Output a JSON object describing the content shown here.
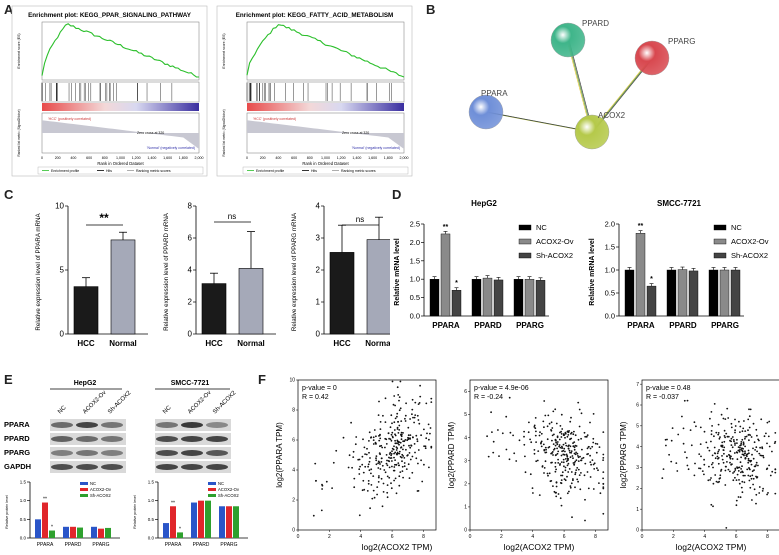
{
  "panel_letters": {
    "A": "A",
    "B": "B",
    "C": "C",
    "D": "D",
    "E": "E",
    "F": "F"
  },
  "panel_a": {
    "plots": [
      {
        "title": "Enrichment plot: KEGG_PPAR_SIGNALING_PATHWAY",
        "ylabel_top": "Enrichment score (ES)",
        "ylabel_bottom": "Ranked list metric (Signal2Noise)",
        "xlabel": "Rank in Ordered Dataset",
        "zero_cross": "Zero cross at 320",
        "pos_label": "'HCC' (positively correlated)",
        "neg_label": "'Normal' (negatively correlated)",
        "legend": [
          "Enrichment profile",
          "Hits",
          "Ranking metric scores"
        ]
      },
      {
        "title": "Enrichment plot: KEGG_FATTY_ACID_METABOLISM",
        "ylabel_top": "Enrichment score (ES)",
        "ylabel_bottom": "Ranked list metric (Signal2Noise)",
        "xlabel": "Rank in Ordered Dataset",
        "zero_cross": "Zero cross at 320",
        "pos_label": "'HCC' (positively correlated)",
        "neg_label": "'Normal' (negatively correlated)",
        "legend": [
          "Enrichment profile",
          "Hits",
          "Ranking metric scores"
        ]
      }
    ],
    "x_ticks": [
      "0",
      "200",
      "400",
      "600",
      "800",
      "1,000",
      "1,200",
      "1,400",
      "1,600",
      "1,800",
      "2,000"
    ]
  },
  "panel_b": {
    "nodes": [
      {
        "label": "PPARD",
        "color": "#3fb58a"
      },
      {
        "label": "PPARG",
        "color": "#d8484f"
      },
      {
        "label": "PPARA",
        "color": "#6f8fd8"
      },
      {
        "label": "ACOX2",
        "color": "#b5c94a"
      }
    ]
  },
  "chart_data": [
    {
      "type": "bar",
      "id": "C1",
      "categories": [
        "HCC",
        "Normal"
      ],
      "values": [
        3.7,
        7.35
      ],
      "errors": [
        0.7,
        0.6
      ],
      "colors": [
        "#1a1a1a",
        "#a5a9b8"
      ],
      "ylabel": "Relative expression level of PPARA mRNA",
      "ylim": [
        0,
        10
      ],
      "yticks": [
        0,
        5,
        10
      ],
      "significance": "**"
    },
    {
      "type": "bar",
      "id": "C2",
      "categories": [
        "HCC",
        "Normal"
      ],
      "values": [
        3.15,
        4.1
      ],
      "errors": [
        0.65,
        2.3
      ],
      "colors": [
        "#1a1a1a",
        "#a5a9b8"
      ],
      "ylabel": "Relative expression level of PPARD mRNA",
      "ylim": [
        0,
        8
      ],
      "yticks": [
        0,
        2,
        4,
        6,
        8
      ],
      "significance": "ns"
    },
    {
      "type": "bar",
      "id": "C3",
      "categories": [
        "HCC",
        "Normal"
      ],
      "values": [
        2.55,
        2.95
      ],
      "errors": [
        0.85,
        0.7
      ],
      "colors": [
        "#1a1a1a",
        "#a5a9b8"
      ],
      "ylabel": "Relative expression level of PPARG mRNA",
      "ylim": [
        0,
        4
      ],
      "yticks": [
        0,
        1,
        2,
        3,
        4
      ],
      "significance": "ns"
    },
    {
      "type": "bar",
      "id": "D1",
      "title": "HepG2",
      "categories": [
        "PPARA",
        "PPARD",
        "PPARG"
      ],
      "series": [
        {
          "name": "NC",
          "values": [
            1.0,
            1.0,
            1.0
          ],
          "color": "#000000"
        },
        {
          "name": "ACOX2-Ov",
          "values": [
            2.23,
            1.03,
            1.0
          ],
          "color": "#8a8a8a"
        },
        {
          "name": "Sh-ACOX2",
          "values": [
            0.7,
            0.98,
            0.97
          ],
          "color": "#444444"
        }
      ],
      "annotations": [
        "**",
        "*"
      ],
      "ylabel": "Relative mRNA level",
      "ylim": [
        0,
        2.5
      ],
      "yticks": [
        "0.0",
        "0.5",
        "1.0",
        "1.5",
        "2.0",
        "2.5"
      ]
    },
    {
      "type": "bar",
      "id": "D2",
      "title": "SMCC-7721",
      "categories": [
        "PPARA",
        "PPARD",
        "PPARG"
      ],
      "series": [
        {
          "name": "NC",
          "values": [
            1.0,
            1.0,
            1.0
          ],
          "color": "#000000"
        },
        {
          "name": "ACOX2-Ov",
          "values": [
            1.8,
            1.01,
            1.0
          ],
          "color": "#8a8a8a"
        },
        {
          "name": "Sh-ACOX2",
          "values": [
            0.65,
            0.98,
            1.0
          ],
          "color": "#444444"
        }
      ],
      "annotations": [
        "**",
        "*"
      ],
      "ylabel": "Relative mRNA level",
      "ylim": [
        0,
        2.0
      ],
      "yticks": [
        "0.0",
        "0.5",
        "1.0",
        "1.5",
        "2.0"
      ]
    },
    {
      "type": "bar",
      "id": "E1",
      "categories": [
        "PPARA",
        "PPARD",
        "PPARG"
      ],
      "series": [
        {
          "name": "NC",
          "values": [
            0.5,
            0.3,
            0.3
          ],
          "color": "#2a55c8"
        },
        {
          "name": "ACOX2-Ov",
          "values": [
            0.95,
            0.3,
            0.25
          ],
          "color": "#e0262b"
        },
        {
          "name": "Sh-ACOX2",
          "values": [
            0.2,
            0.28,
            0.27
          ],
          "color": "#2ea02e"
        }
      ],
      "annotations": [
        "**",
        "*"
      ],
      "ylabel": "Relative protein level",
      "ylim": [
        0,
        1.5
      ],
      "yticks": [
        "0.0",
        "0.5",
        "1.0",
        "1.5"
      ]
    },
    {
      "type": "bar",
      "id": "E2",
      "categories": [
        "PPARA",
        "PPARD",
        "PPARG"
      ],
      "series": [
        {
          "name": "NC",
          "values": [
            0.4,
            0.95,
            0.85
          ],
          "color": "#2a55c8"
        },
        {
          "name": "ACOX2-Ov",
          "values": [
            0.85,
            1.0,
            0.85
          ],
          "color": "#e0262b"
        },
        {
          "name": "Sh-ACOX2",
          "values": [
            0.15,
            1.0,
            0.85
          ],
          "color": "#2ea02e"
        }
      ],
      "annotations": [
        "**",
        "*"
      ],
      "ylabel": "Relative protein level",
      "ylim": [
        0,
        1.5
      ],
      "yticks": [
        "0.0",
        "0.5",
        "1.0",
        "1.5"
      ]
    },
    {
      "type": "scatter",
      "id": "F1",
      "ylabel": "log2(PPARA TPM)",
      "xlabel": "log2(ACOX2 TPM)",
      "stats": [
        "p-value = 0",
        "R = 0.42"
      ],
      "xlim": [
        0,
        8.8
      ],
      "ylim": [
        0,
        10
      ],
      "xticks": [
        0,
        2,
        4,
        6,
        8
      ],
      "yticks": [
        0,
        2,
        4,
        6,
        8,
        10
      ],
      "trend": 0.42
    },
    {
      "type": "scatter",
      "id": "F2",
      "ylabel": "log2(PPARD TPM)",
      "xlabel": "log2(ACOX2 TPM)",
      "stats": [
        "p-value = 4.9e-06",
        "R = -0.24"
      ],
      "xlim": [
        0,
        8.8
      ],
      "ylim": [
        0,
        6.5
      ],
      "xticks": [
        0,
        2,
        4,
        6,
        8
      ],
      "yticks": [
        0,
        1,
        2,
        3,
        4,
        5,
        6
      ],
      "trend": -0.24
    },
    {
      "type": "scatter",
      "id": "F3",
      "ylabel": "log2(PPARG TPM)",
      "xlabel": "log2(ACOX2 TPM)",
      "stats": [
        "p-value = 0.48",
        "R = -0.037"
      ],
      "xlim": [
        0,
        8.8
      ],
      "ylim": [
        0,
        7.2
      ],
      "xticks": [
        0,
        2,
        4,
        6,
        8
      ],
      "yticks": [
        0,
        1,
        2,
        3,
        4,
        5,
        6,
        7
      ],
      "trend": -0.04
    }
  ],
  "panel_e": {
    "hepg2_title": "HepG2",
    "smcc_title": "SMCC-7721",
    "lane_labels": [
      "NC",
      "ACOX2-Ov",
      "Sh-ACOX2"
    ],
    "proteins": [
      "PPARA",
      "PPARD",
      "PPARG",
      "GAPDH"
    ]
  }
}
